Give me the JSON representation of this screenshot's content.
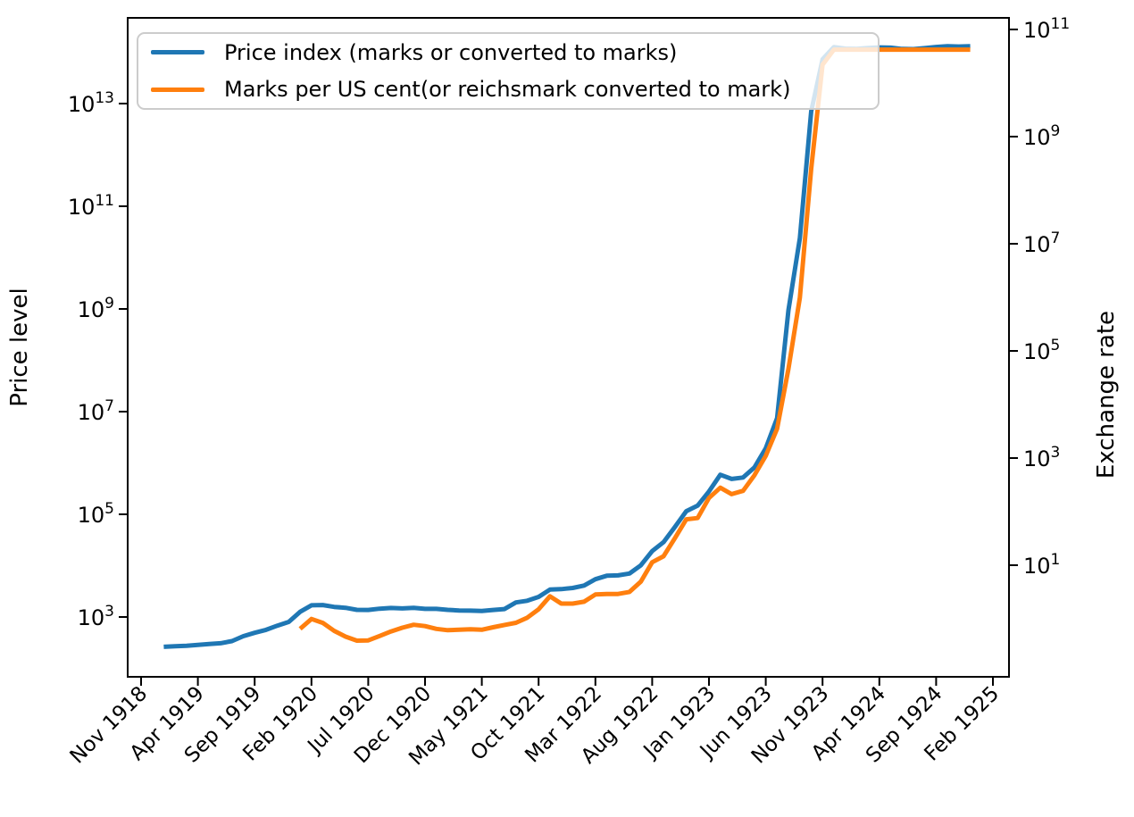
{
  "figure": {
    "background": "#ffffff",
    "axis_color": "#000000"
  },
  "chart_data": {
    "type": "line",
    "title": "",
    "x_tick_labels": [
      "Nov 1918",
      "Apr 1919",
      "Sep 1919",
      "Feb 1920",
      "Jul 1920",
      "Dec 1920",
      "May 1921",
      "Oct 1921",
      "Mar 1922",
      "Aug 1922",
      "Jan 1923",
      "Jun 1923",
      "Nov 1923",
      "Apr 1924",
      "Sep 1924",
      "Feb 1925"
    ],
    "months": [
      "Nov 1918",
      "Dec 1918",
      "Jan 1919",
      "Feb 1919",
      "Mar 1919",
      "Apr 1919",
      "May 1919",
      "Jun 1919",
      "Jul 1919",
      "Aug 1919",
      "Sep 1919",
      "Oct 1919",
      "Nov 1919",
      "Dec 1919",
      "Jan 1920",
      "Feb 1920",
      "Mar 1920",
      "Apr 1920",
      "May 1920",
      "Jun 1920",
      "Jul 1920",
      "Aug 1920",
      "Sep 1920",
      "Oct 1920",
      "Nov 1920",
      "Dec 1920",
      "Jan 1921",
      "Feb 1921",
      "Mar 1921",
      "Apr 1921",
      "May 1921",
      "Jun 1921",
      "Jul 1921",
      "Aug 1921",
      "Sep 1921",
      "Oct 1921",
      "Nov 1921",
      "Dec 1921",
      "Jan 1922",
      "Feb 1922",
      "Mar 1922",
      "Apr 1922",
      "May 1922",
      "Jun 1922",
      "Jul 1922",
      "Aug 1922",
      "Sep 1922",
      "Oct 1922",
      "Nov 1922",
      "Dec 1922",
      "Jan 1923",
      "Feb 1923",
      "Mar 1923",
      "Apr 1923",
      "May 1923",
      "Jun 1923",
      "Jul 1923",
      "Aug 1923",
      "Sep 1923",
      "Oct 1923",
      "Nov 1923",
      "Dec 1923",
      "Jan 1924",
      "Feb 1924",
      "Mar 1924",
      "Apr 1924",
      "May 1924",
      "Jun 1924",
      "Jul 1924",
      "Aug 1924",
      "Sep 1924",
      "Oct 1924",
      "Nov 1924",
      "Dec 1924"
    ],
    "series": [
      {
        "name": "Price index (marks or converted to marks)",
        "color": "#1f77b4",
        "axis": "left",
        "values": [
          null,
          null,
          262,
          270,
          274,
          286,
          297,
          308,
          339,
          422,
          493,
          562,
          678,
          803,
          1260,
          1690,
          1710,
          1570,
          1510,
          1380,
          1370,
          1450,
          1500,
          1470,
          1510,
          1440,
          1440,
          1380,
          1340,
          1330,
          1310,
          1370,
          1430,
          1920,
          2070,
          2460,
          3420,
          3490,
          3670,
          4100,
          5430,
          6360,
          6460,
          7030,
          10160,
          19200,
          28700,
          56600,
          115100,
          147480,
          278500,
          588500,
          488800,
          521200,
          817000,
          1938500,
          7478700,
          944041000.0,
          23949000000.0,
          7095800000000.0,
          72570000000000.0,
          126160000000000.0,
          117320000000000.0,
          116470000000000.0,
          120910000000000.0,
          124050000000000.0,
          122460000000000.0,
          115900000000000.0,
          115010000000000.0,
          120190000000000.0,
          126880000000000.0,
          130990000000000.0,
          129150000000000.0,
          130930000000000.0
        ]
      },
      {
        "name": "Marks per US cent(or reichsmark converted to mark)",
        "color": "#ff7f0e",
        "axis": "right",
        "values": [
          null,
          null,
          null,
          null,
          null,
          null,
          null,
          null,
          null,
          null,
          null,
          null,
          null,
          null,
          0.648,
          0.991,
          0.839,
          0.596,
          0.465,
          0.391,
          0.395,
          0.477,
          0.58,
          0.682,
          0.772,
          0.73,
          0.649,
          0.613,
          0.625,
          0.635,
          0.623,
          0.694,
          0.767,
          0.843,
          1.049,
          1.502,
          2.63,
          1.919,
          1.918,
          2.078,
          2.842,
          2.91,
          2.901,
          3.174,
          4.932,
          11.346,
          14.659,
          31.81,
          71.831,
          75.893,
          179.7,
          279.2,
          211.9,
          244.6,
          476.7,
          1099.7,
          3534.1,
          46205,
          988600,
          252600000.0,
          21936000000.0,
          42000000000.0,
          42000000000.0,
          42000000000.0,
          42000000000.0,
          42000000000.0,
          42000000000.0,
          42000000000.0,
          42000000000.0,
          42000000000.0,
          42000000000.0,
          42000000000.0,
          42000000000.0,
          42000000000.0
        ]
      }
    ],
    "left_axis": {
      "label": "Price level",
      "scale": "log",
      "tick_exponents": [
        3,
        5,
        7,
        9,
        11,
        13
      ]
    },
    "right_axis": {
      "label": "Exchange rate",
      "scale": "log",
      "tick_exponents": [
        1,
        3,
        5,
        7,
        9,
        11
      ]
    },
    "legend": {
      "location": "upper left"
    }
  }
}
